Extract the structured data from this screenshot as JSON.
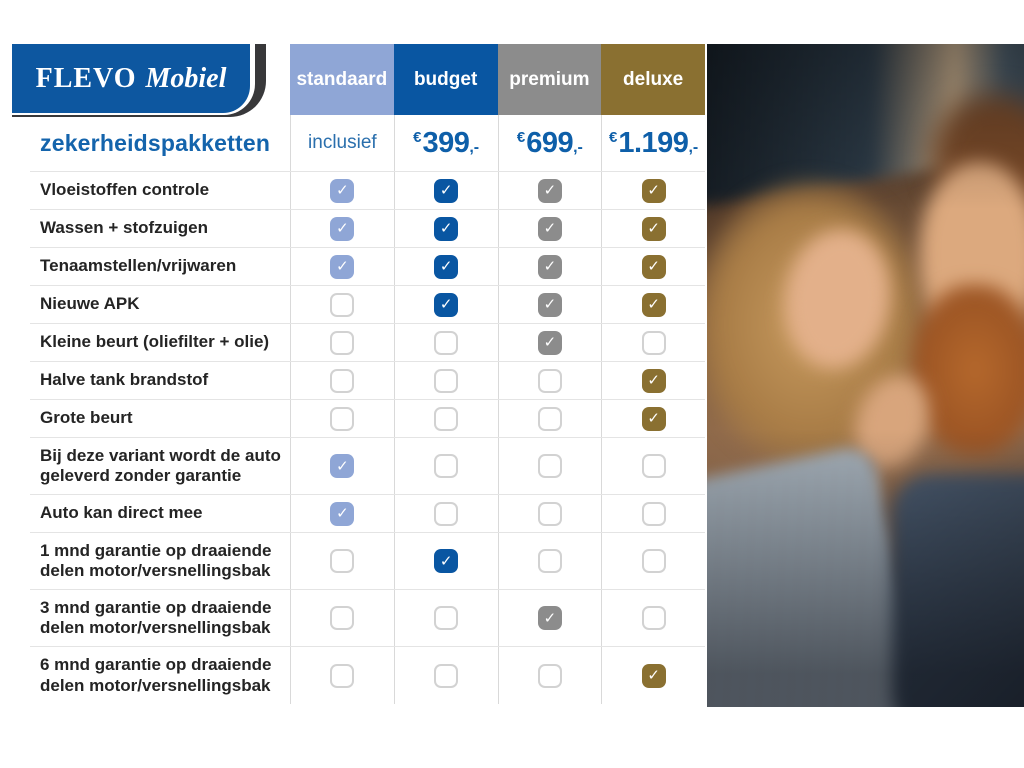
{
  "brand": {
    "primary": "FLEVO",
    "secondary": "Mobiel"
  },
  "page_title": "zekerheidspakketten",
  "colors": {
    "standaard": "#8FA6D6",
    "budget": "#0956A2",
    "premium": "#8C8C8C",
    "deluxe": "#8A7031",
    "title_blue": "#1464AC",
    "price_blue": "#0E5FA9",
    "logo_blue": "#0D57A0",
    "logo_dark": "#38383A"
  },
  "packages": [
    {
      "id": "standaard",
      "label": "standaard",
      "color": "#8FA6D6",
      "price_is_text": true,
      "price_prefix": "",
      "price_main": "inclusief",
      "price_suffix": ""
    },
    {
      "id": "budget",
      "label": "budget",
      "color": "#0956A2",
      "price_is_text": false,
      "price_prefix": "€",
      "price_main": "399",
      "price_suffix": ",-"
    },
    {
      "id": "premium",
      "label": "premium",
      "color": "#8C8C8C",
      "price_is_text": false,
      "price_prefix": "€",
      "price_main": "699",
      "price_suffix": ",-"
    },
    {
      "id": "deluxe",
      "label": "deluxe",
      "color": "#8A7031",
      "price_is_text": false,
      "price_prefix": "€",
      "price_main": "1.199",
      "price_suffix": ",-"
    }
  ],
  "features": [
    {
      "label": "Vloeistoffen controle",
      "included": [
        true,
        true,
        true,
        true
      ]
    },
    {
      "label": "Wassen + stofzuigen",
      "included": [
        true,
        true,
        true,
        true
      ]
    },
    {
      "label": "Tenaamstellen/vrijwaren",
      "included": [
        true,
        true,
        true,
        true
      ]
    },
    {
      "label": "Nieuwe APK",
      "included": [
        false,
        true,
        true,
        true
      ]
    },
    {
      "label": "Kleine beurt (oliefilter + olie)",
      "included": [
        false,
        false,
        true,
        false
      ]
    },
    {
      "label": "Halve tank brandstof",
      "included": [
        false,
        false,
        false,
        true
      ]
    },
    {
      "label": "Grote beurt",
      "included": [
        false,
        false,
        false,
        true
      ]
    },
    {
      "label": "Bij deze variant wordt de auto geleverd zonder garantie",
      "included": [
        true,
        false,
        false,
        false
      ]
    },
    {
      "label": "Auto kan direct mee",
      "included": [
        true,
        false,
        false,
        false
      ]
    },
    {
      "label": "1 mnd garantie op draaiende delen motor/versnellingsbak",
      "included": [
        false,
        true,
        false,
        false
      ]
    },
    {
      "label": "3 mnd garantie op draaiende delen motor/versnellingsbak",
      "included": [
        false,
        false,
        true,
        false
      ]
    },
    {
      "label": "6 mnd garantie op draaiende delen motor/versnellingsbak",
      "included": [
        false,
        false,
        false,
        true
      ]
    }
  ],
  "photo": {
    "description": "couple-smiling-inside-car"
  },
  "checkmark_glyph": "✓"
}
